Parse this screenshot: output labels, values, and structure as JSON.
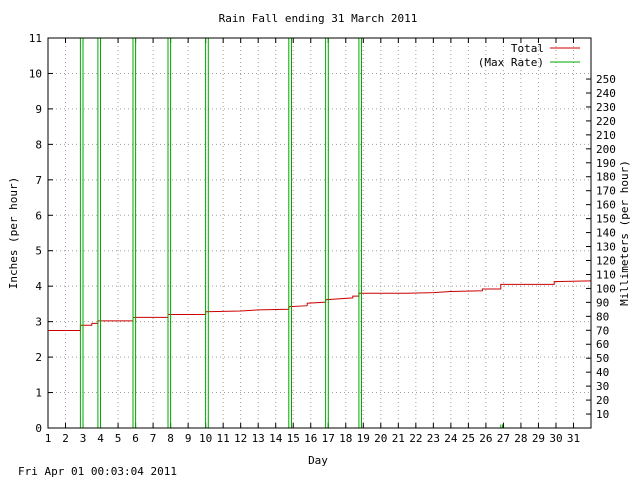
{
  "chart_data": {
    "type": "line",
    "title": "Rain Fall ending 31 March 2011",
    "xlabel": "Day",
    "ylabel": "Inches (per hour)",
    "y2label": "Millimeters (per hour)",
    "xlim": [
      1,
      32
    ],
    "ylim": [
      0,
      11
    ],
    "y2lim": [
      0,
      279.4
    ],
    "x_ticks": [
      1,
      2,
      3,
      4,
      5,
      6,
      7,
      8,
      9,
      10,
      11,
      12,
      13,
      14,
      15,
      16,
      17,
      18,
      19,
      20,
      21,
      22,
      23,
      24,
      25,
      26,
      27,
      28,
      29,
      30,
      31
    ],
    "y_ticks": [
      0,
      1,
      2,
      3,
      4,
      5,
      6,
      7,
      8,
      9,
      10,
      11
    ],
    "y2_ticks": [
      10,
      20,
      30,
      40,
      50,
      60,
      70,
      80,
      90,
      100,
      110,
      120,
      130,
      140,
      150,
      160,
      170,
      180,
      190,
      200,
      210,
      220,
      230,
      240,
      250
    ],
    "grid": true,
    "legend_position": "top-right",
    "series": [
      {
        "name": "Total",
        "color": "#cc0000",
        "style": "step",
        "points": [
          [
            1,
            2.75
          ],
          [
            2.85,
            2.75
          ],
          [
            2.85,
            2.9
          ],
          [
            3.5,
            2.9
          ],
          [
            3.5,
            2.95
          ],
          [
            3.85,
            2.95
          ],
          [
            3.85,
            3.02
          ],
          [
            5.85,
            3.02
          ],
          [
            5.85,
            3.12
          ],
          [
            7.85,
            3.12
          ],
          [
            7.85,
            3.2
          ],
          [
            10.0,
            3.2
          ],
          [
            10.0,
            3.28
          ],
          [
            12.0,
            3.3
          ],
          [
            13.0,
            3.33
          ],
          [
            14.75,
            3.35
          ],
          [
            14.75,
            3.42
          ],
          [
            15.8,
            3.45
          ],
          [
            15.8,
            3.52
          ],
          [
            16.85,
            3.55
          ],
          [
            16.85,
            3.62
          ],
          [
            18.4,
            3.67
          ],
          [
            18.4,
            3.72
          ],
          [
            18.75,
            3.72
          ],
          [
            18.75,
            3.8
          ],
          [
            21.5,
            3.8
          ],
          [
            23.0,
            3.82
          ],
          [
            24.0,
            3.85
          ],
          [
            25.8,
            3.87
          ],
          [
            25.8,
            3.92
          ],
          [
            26.85,
            3.92
          ],
          [
            26.85,
            4.05
          ],
          [
            29.9,
            4.05
          ],
          [
            29.9,
            4.13
          ],
          [
            32,
            4.15
          ]
        ]
      },
      {
        "name": "(Max Rate)",
        "color": "#00aa00",
        "style": "spikes",
        "spikes": [
          {
            "x": 2.85,
            "width": 0.15,
            "y": 11
          },
          {
            "x": 3.85,
            "width": 0.15,
            "y": 11
          },
          {
            "x": 5.85,
            "width": 0.15,
            "y": 11
          },
          {
            "x": 7.85,
            "width": 0.15,
            "y": 11
          },
          {
            "x": 10.0,
            "width": 0.15,
            "y": 11
          },
          {
            "x": 14.75,
            "width": 0.15,
            "y": 11
          },
          {
            "x": 16.85,
            "width": 0.15,
            "y": 11
          },
          {
            "x": 18.75,
            "width": 0.15,
            "y": 11
          },
          {
            "x": 26.85,
            "width": 0.1,
            "y": 0.1
          }
        ]
      }
    ]
  },
  "footer": {
    "timestamp": "Fri Apr 01 00:03:04 2011"
  }
}
